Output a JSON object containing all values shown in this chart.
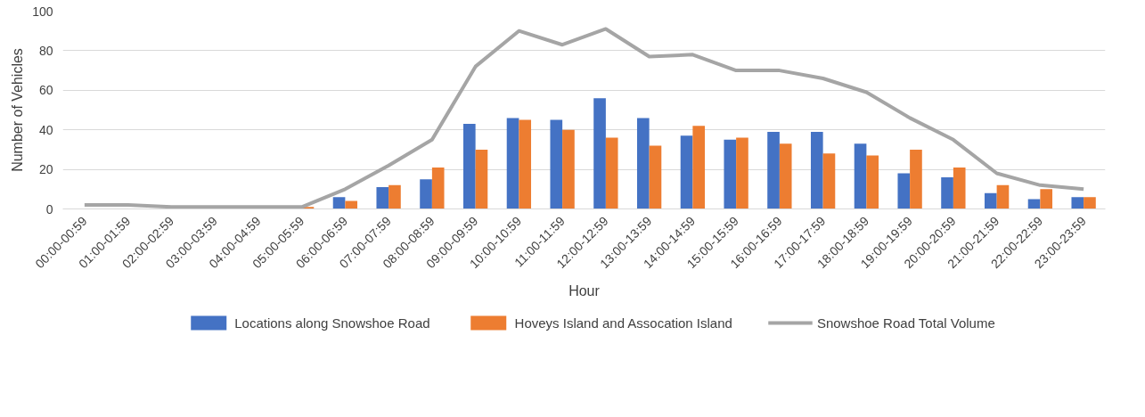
{
  "chart_data": {
    "type": "bar",
    "categories": [
      "00:00-00:59",
      "01:00-01:59",
      "02:00-02:59",
      "03:00-03:59",
      "04:00-04:59",
      "05:00-05:59",
      "06:00-06:59",
      "07:00-07:59",
      "08:00-08:59",
      "09:00-09:59",
      "10:00-10:59",
      "11:00-11:59",
      "12:00-12:59",
      "13:00-13:59",
      "14:00-14:59",
      "15:00-15:59",
      "16:00-16:59",
      "17:00-17:59",
      "18:00-18:59",
      "19:00-19:59",
      "20:00-20:59",
      "21:00-21:59",
      "22:00-22:59",
      "23:00-23:59"
    ],
    "series": [
      {
        "name": "Locations along Snowshoe Road",
        "color": "#4472c4",
        "values": [
          0,
          0,
          0,
          0,
          0,
          0,
          6,
          11,
          15,
          43,
          46,
          45,
          56,
          46,
          37,
          35,
          39,
          39,
          33,
          18,
          16,
          8,
          5,
          6
        ]
      },
      {
        "name": "Hoveys Island and Assocation Island",
        "color": "#ed7d31",
        "values": [
          0,
          0,
          0,
          0,
          0,
          1,
          4,
          12,
          21,
          30,
          45,
          40,
          36,
          32,
          42,
          36,
          33,
          28,
          27,
          30,
          21,
          12,
          10,
          6
        ]
      },
      {
        "name": "Snowshoe Road Total Volume",
        "type": "line",
        "color": "#a5a5a5",
        "values": [
          2,
          2,
          1,
          1,
          1,
          1,
          10,
          22,
          35,
          72,
          90,
          83,
          91,
          77,
          78,
          70,
          70,
          66,
          59,
          46,
          35,
          18,
          12,
          10
        ]
      }
    ],
    "xlabel": "Hour",
    "ylabel": "Number of Vehicles",
    "ylim": [
      0,
      100
    ],
    "yticks": [
      0,
      20,
      40,
      60,
      80,
      100
    ],
    "grid": "y",
    "legend": "bottom"
  }
}
